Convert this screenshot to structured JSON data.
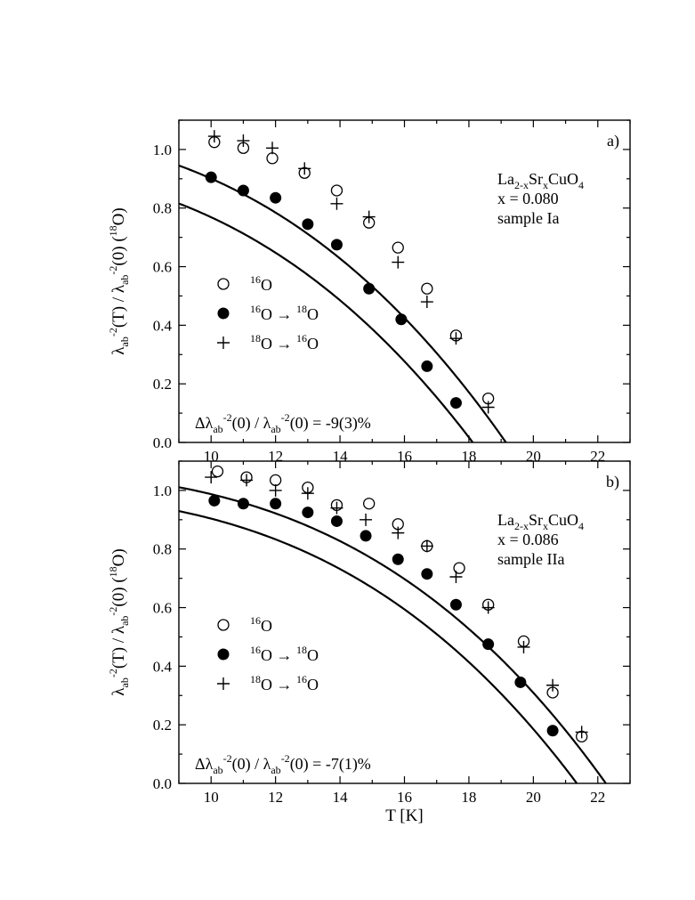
{
  "chart_data": [
    {
      "type": "scatter",
      "panel_label": "a)",
      "xlabel": "T [K]",
      "ylabel": {
        "main": "λ",
        "sub": "ab",
        "sup": "-2",
        "mid": "(T) / λ",
        "sub2": "ab",
        "sup2": "-2",
        "tail": "(0) (",
        "iso_sup": "18",
        "iso": "O)"
      },
      "xlim": [
        9,
        23
      ],
      "ylim": [
        0.0,
        1.1
      ],
      "xticks": [
        "10",
        "12",
        "14",
        "16",
        "18",
        "20",
        "22"
      ],
      "yticks": [
        "0.0",
        "0.2",
        "0.4",
        "0.6",
        "0.8",
        "1.0"
      ],
      "annotation_lines": [
        {
          "pre": "La",
          "sub1": "2-x",
          "mid": "Sr",
          "sub2": "x",
          "post": "CuO",
          "sub3": "4"
        },
        {
          "text": "x = 0.080"
        },
        {
          "text": "sample Ia"
        }
      ],
      "delta_text": {
        "pre": "Δλ",
        "sub": "ab",
        "sup": "-2",
        "mid": "(0) / λ",
        "sub2": "ab",
        "sup2": "-2",
        "post": "(0) = -9(3)%"
      },
      "legend": [
        {
          "marker": "open-circle",
          "sup": "16",
          "text": "O"
        },
        {
          "marker": "filled-circle",
          "sup": "16",
          "text": "O",
          "arrow": "→",
          "sup2": "18",
          "text2": "O"
        },
        {
          "marker": "plus",
          "sup": "18",
          "text": "O",
          "arrow": "→",
          "sup2": "16",
          "text2": "O"
        }
      ],
      "series": [
        {
          "marker": "open-circle",
          "x": [
            10.1,
            11.0,
            11.9,
            12.9,
            13.9,
            14.9,
            15.8,
            16.7,
            17.6,
            18.6
          ],
          "y": [
            1.025,
            1.005,
            0.97,
            0.92,
            0.86,
            0.75,
            0.665,
            0.525,
            0.365,
            0.15
          ]
        },
        {
          "marker": "filled-circle",
          "x": [
            10.0,
            11.0,
            12.0,
            13.0,
            13.9,
            14.9,
            15.9,
            16.7,
            17.6
          ],
          "y": [
            0.905,
            0.86,
            0.835,
            0.745,
            0.675,
            0.525,
            0.42,
            0.26,
            0.135
          ]
        },
        {
          "marker": "plus",
          "x": [
            10.1,
            11.0,
            11.9,
            12.9,
            13.9,
            14.9,
            15.8,
            16.7,
            17.6,
            18.6
          ],
          "y": [
            1.045,
            1.03,
            1.005,
            0.935,
            0.815,
            0.77,
            0.615,
            0.48,
            0.355,
            0.12
          ]
        }
      ],
      "fits": [
        {
          "tc": 19.15,
          "n": 2.8,
          "a": 1.075
        },
        {
          "tc": 18.12,
          "n": 2.75,
          "a": 0.955
        }
      ]
    },
    {
      "type": "scatter",
      "panel_label": "b)",
      "xlabel": "T [K]",
      "ylabel": {
        "main": "λ",
        "sub": "ab",
        "sup": "-2",
        "mid": "(T) / λ",
        "sub2": "ab",
        "sup2": "-2",
        "tail": "(0) (",
        "iso_sup": "18",
        "iso": "O)"
      },
      "xlim": [
        9,
        23
      ],
      "ylim": [
        0.0,
        1.1
      ],
      "xticks": [
        "10",
        "12",
        "14",
        "16",
        "18",
        "20",
        "22"
      ],
      "yticks": [
        "0.0",
        "0.2",
        "0.4",
        "0.6",
        "0.8",
        "1.0"
      ],
      "annotation_lines": [
        {
          "pre": "La",
          "sub1": "2-x",
          "mid": "Sr",
          "sub2": "x",
          "post": "CuO",
          "sub3": "4"
        },
        {
          "text": "x = 0.086"
        },
        {
          "text": "sample IIa"
        }
      ],
      "delta_text": {
        "pre": "Δλ",
        "sub": "ab",
        "sup": "-2",
        "mid": "(0) / λ",
        "sub2": "ab",
        "sup2": "-2",
        "post": "(0) = -7(1)%"
      },
      "legend": [
        {
          "marker": "open-circle",
          "sup": "16",
          "text": "O"
        },
        {
          "marker": "filled-circle",
          "sup": "16",
          "text": "O",
          "arrow": "→",
          "sup2": "18",
          "text2": "O"
        },
        {
          "marker": "plus",
          "sup": "18",
          "text": "O",
          "arrow": "→",
          "sup2": "16",
          "text2": "O"
        }
      ],
      "series": [
        {
          "marker": "open-circle",
          "x": [
            10.2,
            11.1,
            12.0,
            13.0,
            13.9,
            14.9,
            15.8,
            16.7,
            17.7,
            18.6,
            19.7,
            20.6,
            21.5
          ],
          "y": [
            1.065,
            1.045,
            1.035,
            1.01,
            0.95,
            0.955,
            0.885,
            0.81,
            0.735,
            0.61,
            0.485,
            0.31,
            0.16
          ]
        },
        {
          "marker": "filled-circle",
          "x": [
            10.1,
            11.0,
            12.0,
            13.0,
            13.9,
            14.8,
            15.8,
            16.7,
            17.6,
            18.6,
            19.6,
            20.6
          ],
          "y": [
            0.965,
            0.955,
            0.955,
            0.925,
            0.895,
            0.845,
            0.765,
            0.715,
            0.61,
            0.475,
            0.345,
            0.18
          ]
        },
        {
          "marker": "plus",
          "x": [
            10.0,
            11.1,
            12.0,
            13.0,
            13.9,
            14.8,
            15.8,
            16.7,
            17.6,
            18.6,
            19.7,
            20.6,
            21.5
          ],
          "y": [
            1.045,
            1.035,
            1.0,
            0.99,
            0.94,
            0.9,
            0.855,
            0.81,
            0.705,
            0.6,
            0.465,
            0.335,
            0.175
          ]
        }
      ],
      "fits": [
        {
          "tc": 22.25,
          "n": 3.2,
          "a": 1.07
        },
        {
          "tc": 21.35,
          "n": 3.15,
          "a": 0.995
        }
      ]
    }
  ]
}
